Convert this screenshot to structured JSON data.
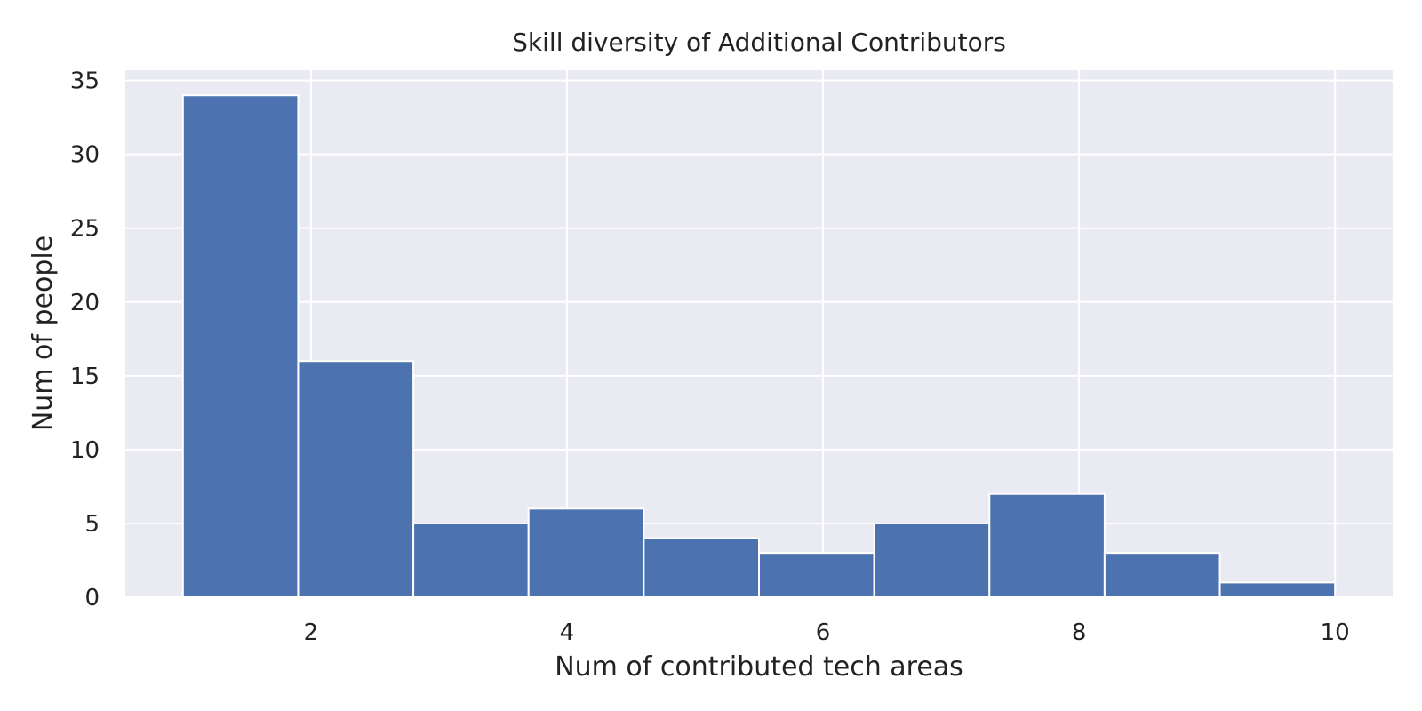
{
  "chart_data": {
    "type": "bar",
    "title": "Skill diversity of Additional Contributors",
    "xlabel": "Num of contributed tech areas",
    "ylabel": "Num of people",
    "bins": [
      {
        "start": 1.0,
        "end": 1.9,
        "count": 34
      },
      {
        "start": 1.9,
        "end": 2.8,
        "count": 16
      },
      {
        "start": 2.8,
        "end": 3.7,
        "count": 5
      },
      {
        "start": 3.7,
        "end": 4.6,
        "count": 6
      },
      {
        "start": 4.6,
        "end": 5.5,
        "count": 4
      },
      {
        "start": 5.5,
        "end": 6.4,
        "count": 3
      },
      {
        "start": 6.4,
        "end": 7.3,
        "count": 5
      },
      {
        "start": 7.3,
        "end": 8.2,
        "count": 7
      },
      {
        "start": 8.2,
        "end": 9.1,
        "count": 3
      },
      {
        "start": 9.1,
        "end": 10.0,
        "count": 1
      }
    ],
    "xlim": [
      0.55,
      10.45
    ],
    "ylim": [
      0,
      35.7
    ],
    "xticks": [
      2,
      4,
      6,
      8,
      10
    ],
    "yticks": [
      0,
      5,
      10,
      15,
      20,
      25,
      30,
      35
    ],
    "grid": true,
    "colors": {
      "bar": "#4c72b0",
      "plot_background": "#eaeaf2",
      "grid": "#ffffff",
      "text": "#222222"
    }
  }
}
